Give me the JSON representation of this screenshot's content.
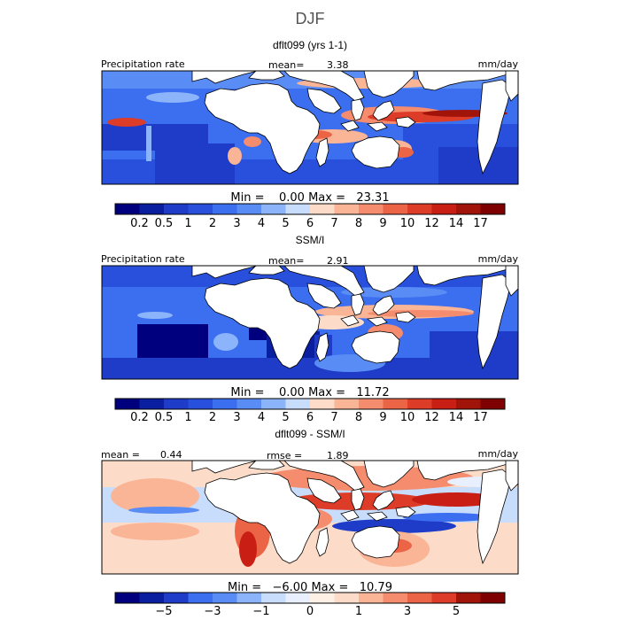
{
  "page_title": "DJF",
  "panels": [
    {
      "title": "dflt099 (yrs 1-1)",
      "left_label": "Precipitation rate",
      "center_label": "mean=",
      "center_value": "3.38",
      "right_label": "mm/day",
      "minmax": "Min =    0.00 Max =   23.31",
      "colorbar": "precip"
    },
    {
      "title": "SSM/I",
      "left_label": "Precipitation rate",
      "center_label": "mean=",
      "center_value": "2.91",
      "right_label": "mm/day",
      "minmax": "Min =    0.00 Max =   11.72",
      "colorbar": "precip"
    },
    {
      "title": "dflt099 - SSM/I",
      "left_label": "mean =",
      "left_value": "0.44",
      "center_label": "rmse =",
      "center_value": "1.89",
      "right_label": "mm/day",
      "minmax": "Min =   −6.00 Max =   10.79",
      "colorbar": "diff"
    }
  ],
  "colorbars": {
    "precip": {
      "colors": [
        "#00007f",
        "#0a1ea0",
        "#1e3cc8",
        "#2850dc",
        "#3c6ef0",
        "#5a8cf5",
        "#8cb4fa",
        "#c8dcfc",
        "#fcdcc8",
        "#fab496",
        "#f58c6e",
        "#eb6446",
        "#dc3c28",
        "#c81e14",
        "#a0140a",
        "#7f0000"
      ],
      "labels": [
        "0.2",
        "0.5",
        "1",
        "2",
        "3",
        "4",
        "5",
        "6",
        "7",
        "8",
        "9",
        "10",
        "12",
        "14",
        "17"
      ]
    },
    "diff": {
      "colors": [
        "#00007f",
        "#0a1ea0",
        "#1e3cc8",
        "#3c6ef0",
        "#5a8cf5",
        "#8cb4fa",
        "#c8dcfc",
        "#e8f0ff",
        "#fff0e6",
        "#fcdcc8",
        "#fab496",
        "#f58c6e",
        "#eb6446",
        "#dc3c28",
        "#a0140a",
        "#7f0000"
      ],
      "labels": [
        "−5",
        "−3",
        "−1",
        "0",
        "1",
        "3",
        "5"
      ],
      "label_slots": [
        1,
        3,
        5,
        7,
        9,
        11,
        13
      ]
    }
  },
  "chart_data": [
    {
      "type": "heatmap",
      "title": "dflt099 (yrs 1-1)",
      "variable": "Precipitation rate",
      "units": "mm/day",
      "mean": 3.38,
      "min": 0.0,
      "max": 23.31,
      "levels": [
        0.2,
        0.5,
        1,
        2,
        3,
        4,
        5,
        6,
        7,
        8,
        9,
        10,
        12,
        14,
        17
      ]
    },
    {
      "type": "heatmap",
      "title": "SSM/I",
      "variable": "Precipitation rate",
      "units": "mm/day",
      "mean": 2.91,
      "min": 0.0,
      "max": 11.72,
      "levels": [
        0.2,
        0.5,
        1,
        2,
        3,
        4,
        5,
        6,
        7,
        8,
        9,
        10,
        12,
        14,
        17
      ]
    },
    {
      "type": "heatmap",
      "title": "dflt099 - SSM/I",
      "units": "mm/day",
      "mean": 0.44,
      "rmse": 1.89,
      "min": -6.0,
      "max": 10.79,
      "levels": [
        -5,
        -3,
        -1,
        0,
        1,
        3,
        5
      ]
    }
  ]
}
